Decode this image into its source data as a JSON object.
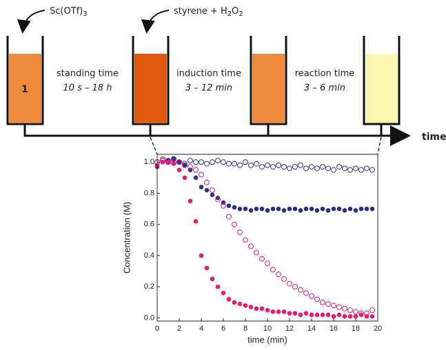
{
  "diagram": {
    "reagents": [
      {
        "parts": [
          "Sc(OTf)",
          "3"
        ]
      },
      {
        "parts": [
          "styrene + H",
          "2",
          "O",
          "2"
        ]
      }
    ],
    "beaker_label": "1",
    "stages": [
      {
        "name": "standing time",
        "duration": "10 s – 18 h"
      },
      {
        "name": "induction time",
        "duration": "3 – 12 min"
      },
      {
        "name": "reaction time",
        "duration": "3 – 6 min"
      }
    ],
    "axis_label": "time"
  },
  "chart_data": {
    "type": "scatter",
    "xlabel": "time (min)",
    "ylabel": "Concentration (M)",
    "x": [
      0,
      0.5,
      1,
      1.5,
      2,
      2.5,
      3,
      3.5,
      4,
      4.5,
      5,
      5.5,
      6,
      6.5,
      7,
      7.5,
      8,
      8.5,
      9,
      9.5,
      10,
      10.5,
      11,
      11.5,
      12,
      12.5,
      13,
      13.5,
      14,
      14.5,
      15,
      15.5,
      16,
      16.5,
      17,
      17.5,
      18,
      18.5,
      19,
      19.5
    ],
    "series": [
      {
        "color": "#2e2e8f",
        "filled": false,
        "values": [
          1.0,
          1.01,
          1.0,
          1.02,
          1.0,
          0.99,
          1.01,
          1.0,
          1.0,
          0.99,
          1.0,
          1.01,
          1.0,
          0.99,
          0.99,
          0.98,
          1.0,
          0.98,
          0.99,
          0.97,
          0.98,
          0.97,
          0.98,
          0.97,
          0.96,
          0.97,
          0.98,
          0.96,
          0.97,
          0.96,
          0.97,
          0.96,
          0.95,
          0.97,
          0.96,
          0.95,
          0.96,
          0.95,
          0.96,
          0.95
        ]
      },
      {
        "color": "#2e2e8f",
        "filled": true,
        "values": [
          0.97,
          1.0,
          1.01,
          1.02,
          1.0,
          0.98,
          0.95,
          0.9,
          0.84,
          0.82,
          0.79,
          0.77,
          0.74,
          0.72,
          0.71,
          0.7,
          0.7,
          0.69,
          0.7,
          0.7,
          0.69,
          0.7,
          0.7,
          0.69,
          0.7,
          0.7,
          0.69,
          0.7,
          0.7,
          0.69,
          0.7,
          0.69,
          0.7,
          0.7,
          0.69,
          0.7,
          0.69,
          0.7,
          0.7,
          0.7
        ]
      },
      {
        "color": "#e8196e",
        "filled": false,
        "values": [
          1.0,
          1.02,
          1.01,
          1.0,
          1.0,
          0.98,
          0.97,
          0.95,
          0.92,
          0.87,
          0.82,
          0.76,
          0.72,
          0.65,
          0.6,
          0.55,
          0.5,
          0.46,
          0.42,
          0.38,
          0.35,
          0.31,
          0.28,
          0.25,
          0.22,
          0.2,
          0.18,
          0.16,
          0.14,
          0.12,
          0.1,
          0.09,
          0.08,
          0.07,
          0.06,
          0.05,
          0.04,
          0.03,
          0.03,
          0.05
        ]
      },
      {
        "color": "#e8196e",
        "filled": true,
        "values": [
          0.98,
          1.0,
          1.0,
          0.99,
          0.95,
          0.9,
          0.75,
          0.62,
          0.4,
          0.32,
          0.25,
          0.2,
          0.16,
          0.12,
          0.1,
          0.09,
          0.08,
          0.07,
          0.06,
          0.06,
          0.05,
          0.04,
          0.04,
          0.04,
          0.03,
          0.03,
          0.02,
          0.03,
          0.02,
          0.02,
          0.02,
          0.02,
          0.01,
          0.02,
          0.01,
          0.01,
          0.01,
          0.02,
          0.01,
          0.01
        ]
      }
    ],
    "xlim": [
      0,
      20
    ],
    "xticks": [
      0,
      2,
      4,
      6,
      8,
      10,
      12,
      14,
      16,
      18,
      20
    ],
    "ylim": [
      -0.02,
      1.05
    ],
    "yticks": [
      {
        "value": 0,
        "label": "0.0"
      },
      0.2,
      0.4,
      0.6,
      0.8,
      {
        "value": 1,
        "label": "1.0"
      }
    ],
    "grid": false
  }
}
